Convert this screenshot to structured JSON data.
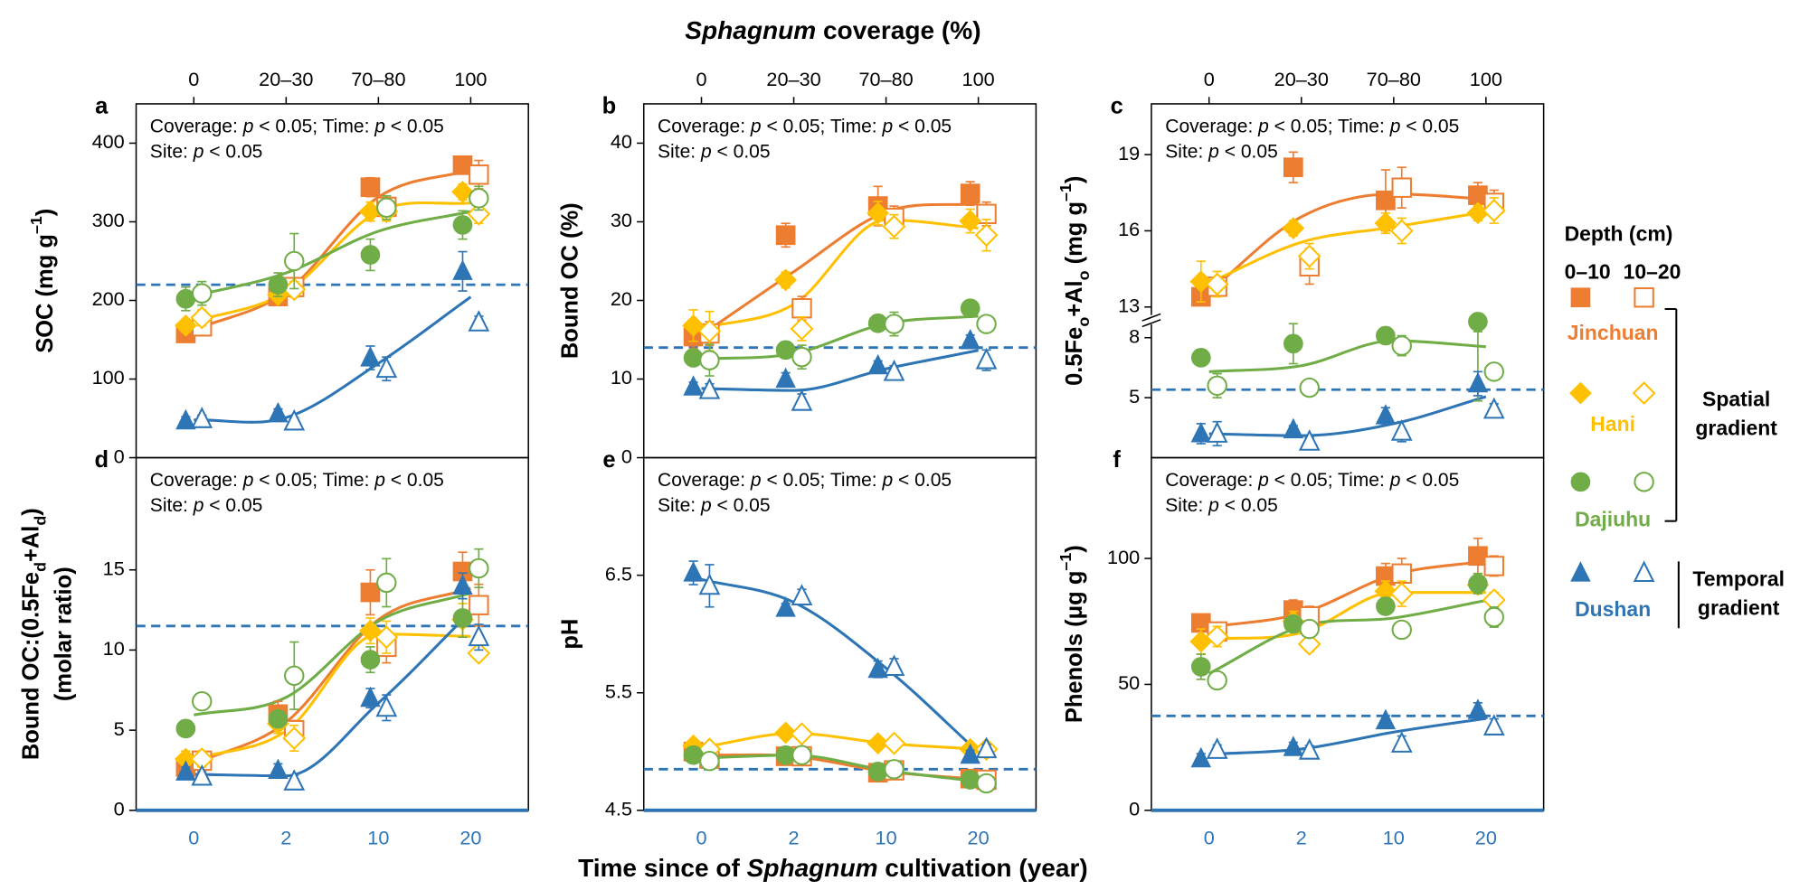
{
  "figure": {
    "top_axis_title": [
      {
        "t": "Sphagnum",
        "i": true
      },
      {
        "t": " coverage (%)"
      }
    ],
    "top_categories": [
      "0",
      "20–30",
      "70–80",
      "100"
    ],
    "x_axis_title": [
      {
        "t": "Time since of "
      },
      {
        "t": "Sphagnum",
        "i": true
      },
      {
        "t": " cultivation (year)"
      }
    ],
    "x_categories": [
      "0",
      "2",
      "10",
      "20"
    ],
    "legend": {
      "title": "Depth (cm)",
      "depths": [
        "0–10",
        "10–20"
      ],
      "sites": [
        {
          "name": "Jinchuan",
          "color": "#ED7D31",
          "marker": "square"
        },
        {
          "name": "Hani",
          "color": "#FFC000",
          "marker": "diamond"
        },
        {
          "name": "Dajiuhu",
          "color": "#70AD47",
          "marker": "circle"
        },
        {
          "name": "Dushan",
          "color": "#2E75B6",
          "marker": "triangle"
        }
      ],
      "groups": [
        {
          "lines": [
            "Spatial",
            "gradient"
          ],
          "sites": [
            0,
            1,
            2
          ]
        },
        {
          "lines": [
            "Temporal",
            "gradient"
          ],
          "sites": [
            3
          ]
        }
      ]
    }
  },
  "chart_data": [
    {
      "type": "scatter",
      "label": "a",
      "ylabel": [
        [
          {
            "t": "SOC (mg g"
          },
          {
            "t": "–1",
            "sup": true
          },
          {
            "t": ")"
          }
        ]
      ],
      "annotation": [
        [
          {
            "t": "Coverage: "
          },
          {
            "t": "p",
            "i": true
          },
          {
            "t": " < 0.05; Time: "
          },
          {
            "t": "p",
            "i": true
          },
          {
            "t": " < 0.05"
          }
        ],
        [
          {
            "t": "Site: "
          },
          {
            "t": "p",
            "i": true
          },
          {
            "t": " < 0.05"
          }
        ]
      ],
      "ylim": [
        0,
        450
      ],
      "yticks": [
        0,
        100,
        200,
        300,
        400
      ],
      "reference": 220,
      "series": [
        {
          "values": [
            158,
            205,
            344,
            372
          ],
          "errors": [
            8,
            6,
            12,
            10
          ]
        },
        {
          "values": [
            167,
            217,
            319,
            360
          ],
          "errors": [
            12,
            8,
            10,
            18
          ]
        },
        {
          "values": [
            168,
            207,
            313,
            338
          ],
          "errors": [
            8,
            8,
            12,
            10
          ]
        },
        {
          "values": [
            178,
            214,
            313,
            310
          ],
          "errors": [
            10,
            10,
            12,
            12
          ]
        },
        {
          "values": [
            202,
            220,
            258,
            296
          ],
          "errors": [
            15,
            15,
            20,
            18
          ]
        },
        {
          "values": [
            209,
            250,
            318,
            330
          ],
          "errors": [
            15,
            35,
            15,
            15
          ]
        },
        {
          "values": [
            47,
            56,
            127,
            237
          ],
          "errors": [
            5,
            6,
            15,
            25
          ]
        },
        {
          "values": [
            49,
            46,
            113,
            172
          ],
          "errors": [
            5,
            5,
            15,
            8
          ]
        }
      ]
    },
    {
      "type": "scatter",
      "label": "b",
      "ylabel": [
        [
          {
            "t": "Bound OC (%)"
          }
        ]
      ],
      "annotation": [
        [
          {
            "t": "Coverage: "
          },
          {
            "t": "p",
            "i": true
          },
          {
            "t": " < 0.05; Time: "
          },
          {
            "t": "p",
            "i": true
          },
          {
            "t": " < 0.05"
          }
        ],
        [
          {
            "t": "Site: "
          },
          {
            "t": "p",
            "i": true
          },
          {
            "t": " < 0.05"
          }
        ]
      ],
      "ylim": [
        0,
        45
      ],
      "yticks": [
        0,
        10,
        20,
        30,
        40
      ],
      "reference": 14,
      "series": [
        {
          "values": [
            15.4,
            28.3,
            32,
            33.6
          ],
          "errors": [
            1.5,
            1.5,
            2.5,
            1.5
          ]
        },
        {
          "values": [
            15.8,
            19,
            30.5,
            31
          ],
          "errors": [
            1.5,
            1.5,
            1.5,
            1.5
          ]
        },
        {
          "values": [
            16.8,
            22.6,
            31.1,
            30.1
          ],
          "errors": [
            2,
            1,
            1.5,
            1.5
          ]
        },
        {
          "values": [
            16.1,
            16.4,
            29.4,
            28.3
          ],
          "errors": [
            2.5,
            1.5,
            1.5,
            2
          ]
        },
        {
          "values": [
            12.7,
            13.7,
            17.1,
            19
          ],
          "errors": [
            1,
            0.8,
            1,
            1
          ]
        },
        {
          "values": [
            12.4,
            12.8,
            17,
            17
          ],
          "errors": [
            2,
            1.5,
            1.5,
            0.6
          ]
        },
        {
          "values": [
            9,
            10,
            11.7,
            14.9
          ],
          "errors": [
            0.6,
            0.8,
            0.6,
            0.7
          ]
        },
        {
          "values": [
            8.6,
            7.1,
            10.9,
            12.4
          ],
          "errors": [
            0.8,
            1,
            0.8,
            1.3
          ]
        }
      ]
    },
    {
      "type": "scatter",
      "label": "c",
      "ylabel": [
        [
          {
            "t": "0.5Fe"
          },
          {
            "t": "o",
            "sub": true
          },
          {
            "t": "+Al"
          },
          {
            "t": "o",
            "sub": true
          },
          {
            "t": " (mg g"
          },
          {
            "t": "–1",
            "sup": true
          },
          {
            "t": ")"
          }
        ]
      ],
      "annotation": [
        [
          {
            "t": "Coverage: "
          },
          {
            "t": "p",
            "i": true
          },
          {
            "t": " < 0.05; Time: "
          },
          {
            "t": "p",
            "i": true
          },
          {
            "t": " < 0.05"
          }
        ],
        [
          {
            "t": "Site: "
          },
          {
            "t": "p",
            "i": true
          },
          {
            "t": " < 0.05"
          }
        ]
      ],
      "ylim": [
        2,
        21
      ],
      "ybreak": [
        8.9,
        12.5
      ],
      "yticks": [
        5,
        8,
        13,
        16,
        19
      ],
      "reference": 5.4,
      "series": [
        {
          "values": [
            13.4,
            18.5,
            17.2,
            17.4
          ],
          "errors": [
            0.3,
            0.6,
            1.2,
            0.5
          ]
        },
        {
          "values": [
            13.8,
            14.6,
            17.7,
            17.1
          ],
          "errors": [
            0.3,
            0.7,
            0.8,
            0.5
          ]
        },
        {
          "values": [
            14,
            16.1,
            16.3,
            16.7
          ],
          "errors": [
            0.8,
            0.3,
            0.4,
            0.3
          ]
        },
        {
          "values": [
            13.9,
            15,
            16,
            16.8
          ],
          "errors": [
            0.5,
            0.5,
            0.5,
            0.5
          ]
        },
        {
          "values": [
            7,
            7.7,
            8.1,
            8.8
          ],
          "errors": [
            0.4,
            1,
            0.4,
            0.5
          ]
        },
        {
          "values": [
            5.6,
            5.5,
            7.6,
            6.3
          ],
          "errors": [
            0.6,
            0.1,
            0.5,
            0.4
          ]
        },
        {
          "values": [
            3.2,
            3.4,
            4.1,
            5.7
          ],
          "errors": [
            0.5,
            0.2,
            0.4,
            0.6
          ]
        },
        {
          "values": [
            3.2,
            2.8,
            3.3,
            4.4
          ],
          "errors": [
            0.6,
            0.2,
            0.5,
            0.3
          ]
        }
      ]
    },
    {
      "type": "scatter",
      "label": "d",
      "ylabel": [
        [
          {
            "t": "Bound OC:(0.5Fe"
          },
          {
            "t": "d",
            "sub": true
          },
          {
            "t": "+Al"
          },
          {
            "t": "d",
            "sub": true
          },
          {
            "t": ")"
          }
        ],
        [
          {
            "t": "(molar ratio)"
          }
        ]
      ],
      "annotation": [
        [
          {
            "t": "Coverage: "
          },
          {
            "t": "p",
            "i": true
          },
          {
            "t": " < 0.05; Time: "
          },
          {
            "t": "p",
            "i": true
          },
          {
            "t": " < 0.05"
          }
        ],
        [
          {
            "t": "Site: "
          },
          {
            "t": "p",
            "i": true
          },
          {
            "t": " < 0.05"
          }
        ]
      ],
      "ylim": [
        0,
        22
      ],
      "yticks": [
        0,
        5,
        10,
        15
      ],
      "reference": 11.5,
      "series": [
        {
          "values": [
            2.7,
            6,
            13.6,
            14.9
          ],
          "errors": [
            0.5,
            0.8,
            1.4,
            1.2
          ]
        },
        {
          "values": [
            3.1,
            5,
            10.2,
            12.8
          ],
          "errors": [
            0.6,
            0.6,
            1,
            1.3
          ]
        },
        {
          "values": [
            3.2,
            5.4,
            11.2,
            11.9
          ],
          "errors": [
            0.5,
            0.6,
            0.8,
            1
          ]
        },
        {
          "values": [
            3.2,
            4.5,
            10.8,
            9.8
          ],
          "errors": [
            0.5,
            0.8,
            1,
            0.3
          ]
        },
        {
          "values": [
            5.1,
            5.7,
            9.4,
            12
          ],
          "errors": [
            0.5,
            0.5,
            0.8,
            1.2
          ]
        },
        {
          "values": [
            6.8,
            8.4,
            14.2,
            15.1
          ],
          "errors": [
            0.4,
            2.1,
            1.5,
            1.2
          ]
        },
        {
          "values": [
            2.4,
            2.5,
            7,
            14
          ],
          "errors": [
            0.3,
            0.4,
            0.6,
            0.8
          ]
        },
        {
          "values": [
            2.1,
            1.8,
            6.4,
            10.8
          ],
          "errors": [
            0.3,
            0.4,
            0.8,
            0.8
          ]
        }
      ]
    },
    {
      "type": "scatter",
      "label": "e",
      "ylabel": [
        [
          {
            "t": "pH"
          }
        ]
      ],
      "annotation": [
        [
          {
            "t": "Coverage: "
          },
          {
            "t": "p",
            "i": true
          },
          {
            "t": " < 0.05; Time: "
          },
          {
            "t": "p",
            "i": true
          },
          {
            "t": " < 0.05"
          }
        ],
        [
          {
            "t": "Site: "
          },
          {
            "t": "p",
            "i": true
          },
          {
            "t": " < 0.05"
          }
        ]
      ],
      "ylim": [
        4.5,
        7.5
      ],
      "yticks": [
        4.5,
        5.5,
        6.5
      ],
      "reference": 4.85,
      "series": [
        {
          "values": [
            5,
            4.96,
            4.82,
            4.77
          ],
          "errors": [
            0.04,
            0.03,
            0.03,
            0.04
          ]
        },
        {
          "values": [
            4.94,
            4.96,
            4.84,
            4.76
          ],
          "errors": [
            0.04,
            0.03,
            0.04,
            0.04
          ]
        },
        {
          "values": [
            5.05,
            5.16,
            5.07,
            5.02
          ],
          "errors": [
            0.03,
            0.03,
            0.03,
            0.03
          ]
        },
        {
          "values": [
            5.02,
            5.15,
            5.07,
            5.02
          ],
          "errors": [
            0.03,
            0.03,
            0.03,
            0.03
          ]
        },
        {
          "values": [
            4.97,
            4.97,
            4.83,
            4.76
          ],
          "errors": [
            0.03,
            0.03,
            0.03,
            0.03
          ]
        },
        {
          "values": [
            4.92,
            4.97,
            4.85,
            4.73
          ],
          "errors": [
            0.03,
            0.03,
            0.03,
            0.03
          ]
        },
        {
          "values": [
            6.52,
            6.22,
            5.7,
            4.97
          ],
          "errors": [
            0.1,
            0.04,
            0.07,
            0.04
          ]
        },
        {
          "values": [
            6.41,
            6.32,
            5.72,
            5.02
          ],
          "errors": [
            0.18,
            0.06,
            0.07,
            0.04
          ]
        }
      ]
    },
    {
      "type": "scatter",
      "label": "f",
      "ylabel": [
        [
          {
            "t": "Phenols (μg g"
          },
          {
            "t": "–1",
            "sup": true
          },
          {
            "t": ")"
          }
        ]
      ],
      "annotation": [
        [
          {
            "t": "Coverage: "
          },
          {
            "t": "p",
            "i": true
          },
          {
            "t": " < 0.05; Time: "
          },
          {
            "t": "p",
            "i": true
          },
          {
            "t": " < 0.05"
          }
        ],
        [
          {
            "t": "Site: "
          },
          {
            "t": "p",
            "i": true
          },
          {
            "t": " < 0.05"
          }
        ]
      ],
      "ylim": [
        0,
        140
      ],
      "yticks": [
        0,
        50,
        100
      ],
      "reference": 37.5,
      "series": [
        {
          "values": [
            74.4,
            79.5,
            93,
            101
          ],
          "errors": [
            3,
            4,
            5,
            7
          ]
        },
        {
          "values": [
            71,
            77,
            94,
            97
          ],
          "errors": [
            3,
            4,
            6,
            4
          ]
        },
        {
          "values": [
            67,
            75,
            87,
            89.5
          ],
          "errors": [
            5,
            4,
            4,
            3
          ]
        },
        {
          "values": [
            69,
            66,
            86,
            83.5
          ],
          "errors": [
            4,
            3,
            5,
            3
          ]
        },
        {
          "values": [
            57,
            74,
            81,
            90
          ],
          "errors": [
            5,
            3,
            3,
            4
          ]
        },
        {
          "values": [
            51.6,
            72,
            71.7,
            76.7
          ],
          "errors": [
            2,
            3,
            2,
            4
          ]
        },
        {
          "values": [
            20.5,
            25,
            35.6,
            39.7
          ],
          "errors": [
            2,
            2,
            2,
            3
          ]
        },
        {
          "values": [
            24,
            23.7,
            26.5,
            33.3
          ],
          "errors": [
            2,
            2,
            3,
            3
          ]
        }
      ]
    }
  ]
}
